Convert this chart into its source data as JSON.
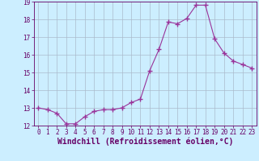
{
  "x": [
    0,
    1,
    2,
    3,
    4,
    5,
    6,
    7,
    8,
    9,
    10,
    11,
    12,
    13,
    14,
    15,
    16,
    17,
    18,
    19,
    20,
    21,
    22,
    23
  ],
  "y": [
    13.0,
    12.9,
    12.7,
    12.1,
    12.1,
    12.5,
    12.8,
    12.9,
    12.9,
    13.0,
    13.3,
    13.5,
    15.1,
    16.3,
    17.85,
    17.75,
    18.05,
    18.8,
    18.8,
    16.9,
    16.1,
    15.65,
    15.45,
    15.25
  ],
  "line_color": "#993399",
  "marker": "+",
  "marker_size": 4,
  "bg_color": "#cceeff",
  "grid_color": "#aabbcc",
  "xlabel": "Windchill (Refroidissement éolien,°C)",
  "xlabel_color": "#660066",
  "xlabel_fontsize": 7,
  "ylim": [
    12,
    19
  ],
  "xlim": [
    -0.5,
    23.5
  ],
  "yticks": [
    12,
    13,
    14,
    15,
    16,
    17,
    18,
    19
  ],
  "xticks": [
    0,
    1,
    2,
    3,
    4,
    5,
    6,
    7,
    8,
    9,
    10,
    11,
    12,
    13,
    14,
    15,
    16,
    17,
    18,
    19,
    20,
    21,
    22,
    23
  ],
  "tick_color": "#660066",
  "tick_fontsize": 5.5,
  "axis_color": "#660066",
  "line_width": 0.8,
  "marker_color": "#993399"
}
